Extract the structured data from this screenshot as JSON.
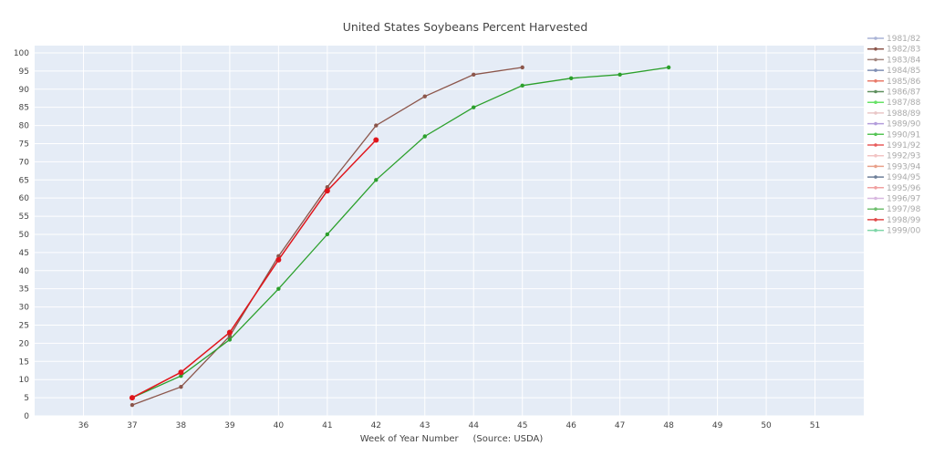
{
  "chart_data": {
    "type": "line",
    "title": "United States Soybeans Percent Harvested",
    "xlabel": "Week of Year Number     (Source: USDA)",
    "ylabel": "",
    "xlim": [
      35,
      52
    ],
    "ylim": [
      0,
      102
    ],
    "xticks": [
      36,
      37,
      38,
      39,
      40,
      41,
      42,
      43,
      44,
      45,
      46,
      47,
      48,
      49,
      50,
      51
    ],
    "yticks": [
      0,
      5,
      10,
      15,
      20,
      25,
      30,
      35,
      40,
      45,
      50,
      55,
      60,
      65,
      70,
      75,
      80,
      85,
      90,
      95,
      100
    ],
    "grid": true,
    "legend_position": "right",
    "legend": [
      {
        "name": "1981/82",
        "color": "#aab4d6"
      },
      {
        "name": "1982/83",
        "color": "#8c564b"
      },
      {
        "name": "1983/84",
        "color": "#a3867f"
      },
      {
        "name": "1984/85",
        "color": "#7f8fb5"
      },
      {
        "name": "1985/86",
        "color": "#e87a6a"
      },
      {
        "name": "1986/87",
        "color": "#5e8f5e"
      },
      {
        "name": "1987/88",
        "color": "#66e266"
      },
      {
        "name": "1988/89",
        "color": "#e9c7c7"
      },
      {
        "name": "1989/90",
        "color": "#b39ddb"
      },
      {
        "name": "1990/91",
        "color": "#55c455"
      },
      {
        "name": "1991/92",
        "color": "#e85c5c"
      },
      {
        "name": "1992/93",
        "color": "#f2c4c4"
      },
      {
        "name": "1993/94",
        "color": "#e8a08a"
      },
      {
        "name": "1994/95",
        "color": "#6d7f99"
      },
      {
        "name": "1995/96",
        "color": "#f0a0a0"
      },
      {
        "name": "1996/97",
        "color": "#d8b8e0"
      },
      {
        "name": "1997/98",
        "color": "#6fbf6f"
      },
      {
        "name": "1998/99",
        "color": "#e04848"
      },
      {
        "name": "1999/00",
        "color": "#7fd6a8"
      }
    ],
    "series": [
      {
        "color": "#8c564b",
        "marker_size": 2.2,
        "width": 1.3,
        "x": [
          37,
          38,
          39,
          40,
          41,
          42,
          43,
          44,
          45
        ],
        "y": [
          3,
          8,
          22,
          44,
          63,
          80,
          88,
          94,
          96
        ]
      },
      {
        "color": "#2ca02c",
        "marker_size": 2.2,
        "width": 1.3,
        "x": [
          37,
          38,
          39,
          40,
          41,
          42,
          43,
          44,
          45,
          46,
          47,
          48
        ],
        "y": [
          5,
          11,
          21,
          35,
          50,
          65,
          77,
          85,
          91,
          93,
          94,
          96
        ]
      },
      {
        "color": "#e0161c",
        "marker_size": 3,
        "width": 1.5,
        "x": [
          37,
          38,
          39,
          40,
          41,
          42
        ],
        "y": [
          5,
          12,
          23,
          43,
          62,
          76
        ]
      }
    ]
  }
}
